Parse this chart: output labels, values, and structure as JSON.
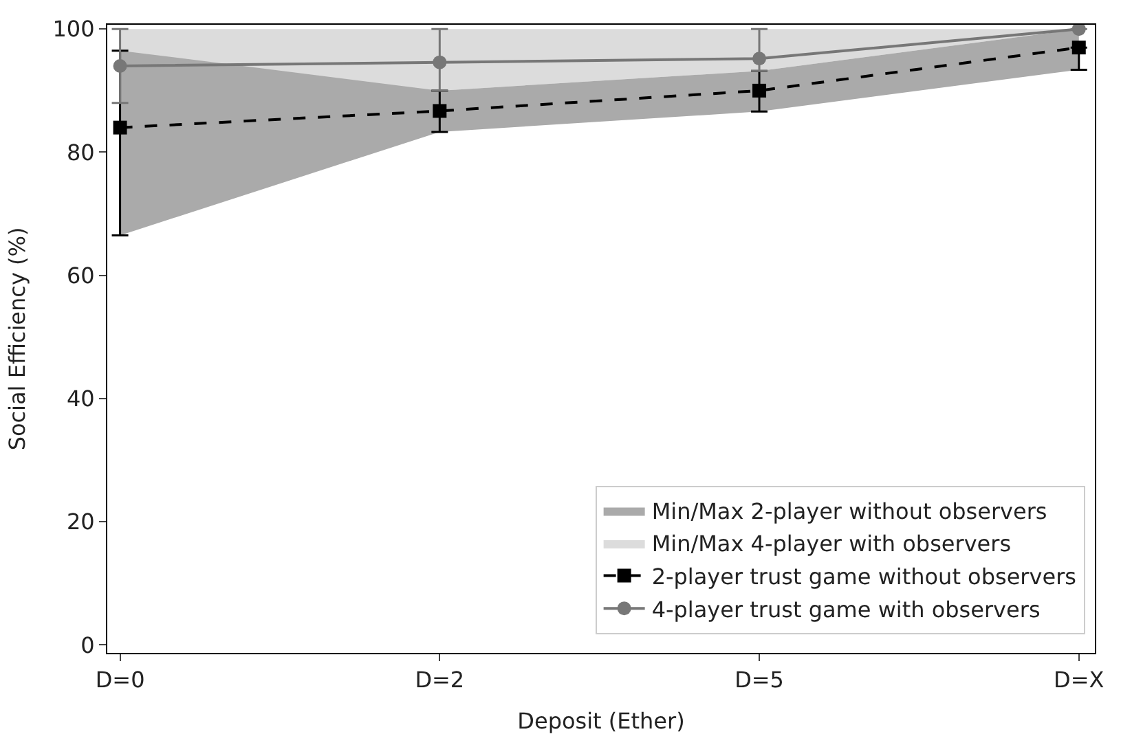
{
  "chart_data": {
    "type": "area",
    "xlabel": "Deposit (Ether)",
    "ylabel": "Social Efficiency (%)",
    "categories": [
      "D=0",
      "D=2",
      "D=5",
      "D=X"
    ],
    "ylim": [
      -1.3,
      100.7
    ],
    "yticks": [
      0,
      20,
      40,
      60,
      80,
      100
    ],
    "legend": "bottom right",
    "series": [
      {
        "name": "Min/Max 2-player without observers",
        "color": "#aaaaaa",
        "values": [
          null,
          null,
          null,
          null
        ],
        "lower": [
          66.5,
          83.3,
          86.6,
          93.4
        ],
        "upper": [
          96.5,
          90,
          93.2,
          100
        ]
      },
      {
        "name": "Min/Max 4-player with observers",
        "color": "#dcdcdc",
        "values": [
          null,
          null,
          null,
          null
        ],
        "lower": [
          88,
          90,
          93.2,
          100
        ],
        "upper": [
          100,
          100,
          100,
          100
        ]
      },
      {
        "name": "2-player trust game without observers",
        "type": "line",
        "color": "#000000",
        "marker": "square",
        "line_style": "dashed",
        "values": [
          84,
          86.7,
          90,
          97
        ],
        "errors": [
          [
            66.5,
            96.5
          ],
          [
            83.3,
            90
          ],
          [
            86.6,
            93.2
          ],
          [
            93.4,
            97
          ]
        ]
      },
      {
        "name": "4-player trust game with observers",
        "type": "line",
        "color": "#777777",
        "marker": "circle",
        "line_style": "solid",
        "values": [
          94,
          94.6,
          95.2,
          100
        ],
        "errors": [
          [
            88,
            100
          ],
          [
            90,
            100
          ],
          [
            93.2,
            100
          ],
          [
            100,
            100
          ]
        ]
      }
    ]
  }
}
